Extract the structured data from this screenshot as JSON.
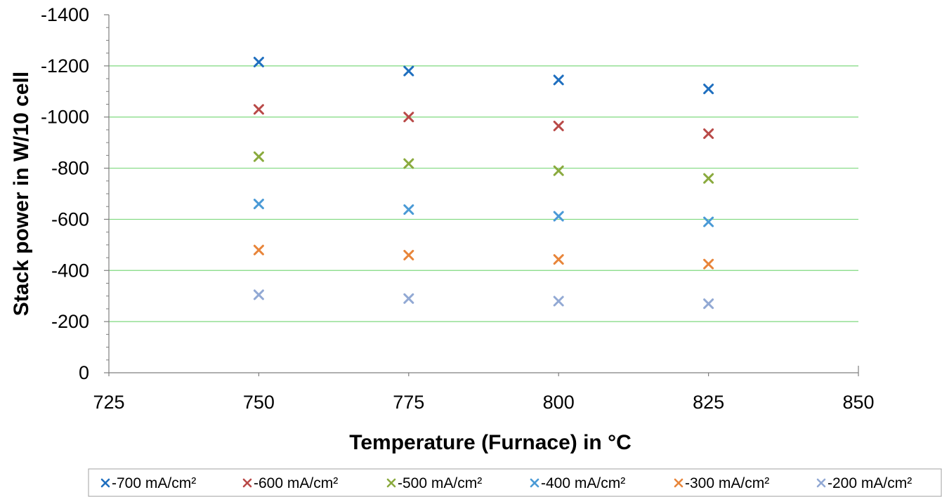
{
  "chart_data": {
    "type": "scatter",
    "title": "",
    "xlabel": "Temperature (Furnace) in °C",
    "ylabel": "Stack power in W/10 cell",
    "xlim": [
      725,
      850
    ],
    "ylim": [
      0,
      -1400
    ],
    "y_reversed": true,
    "x_ticks": [
      725,
      750,
      775,
      800,
      825,
      850
    ],
    "y_ticks": [
      0,
      -200,
      -400,
      -600,
      -800,
      -1000,
      -1200,
      -1400
    ],
    "grid": "horizontal",
    "legend_position": "bottom",
    "marker": "x",
    "series": [
      {
        "name": "-700 mA/cm²",
        "color": "#1f6fbf",
        "points": [
          [
            750,
            -1215
          ],
          [
            775,
            -1180
          ],
          [
            800,
            -1145
          ],
          [
            825,
            -1110
          ]
        ]
      },
      {
        "name": "-600 mA/cm²",
        "color": "#b94a48",
        "points": [
          [
            750,
            -1030
          ],
          [
            775,
            -1000
          ],
          [
            800,
            -965
          ],
          [
            825,
            -935
          ]
        ]
      },
      {
        "name": "-500 mA/cm²",
        "color": "#8aaa3e",
        "points": [
          [
            750,
            -845
          ],
          [
            775,
            -818
          ],
          [
            800,
            -790
          ],
          [
            825,
            -760
          ]
        ]
      },
      {
        "name": "-400 mA/cm²",
        "color": "#4a9ad6",
        "points": [
          [
            750,
            -660
          ],
          [
            775,
            -638
          ],
          [
            800,
            -612
          ],
          [
            825,
            -590
          ]
        ]
      },
      {
        "name": "-300 mA/cm²",
        "color": "#e8853a",
        "points": [
          [
            750,
            -480
          ],
          [
            775,
            -460
          ],
          [
            800,
            -443
          ],
          [
            825,
            -425
          ]
        ]
      },
      {
        "name": "-200 mA/cm²",
        "color": "#92a9d4",
        "points": [
          [
            750,
            -305
          ],
          [
            775,
            -290
          ],
          [
            800,
            -280
          ],
          [
            825,
            -270
          ]
        ]
      }
    ]
  }
}
